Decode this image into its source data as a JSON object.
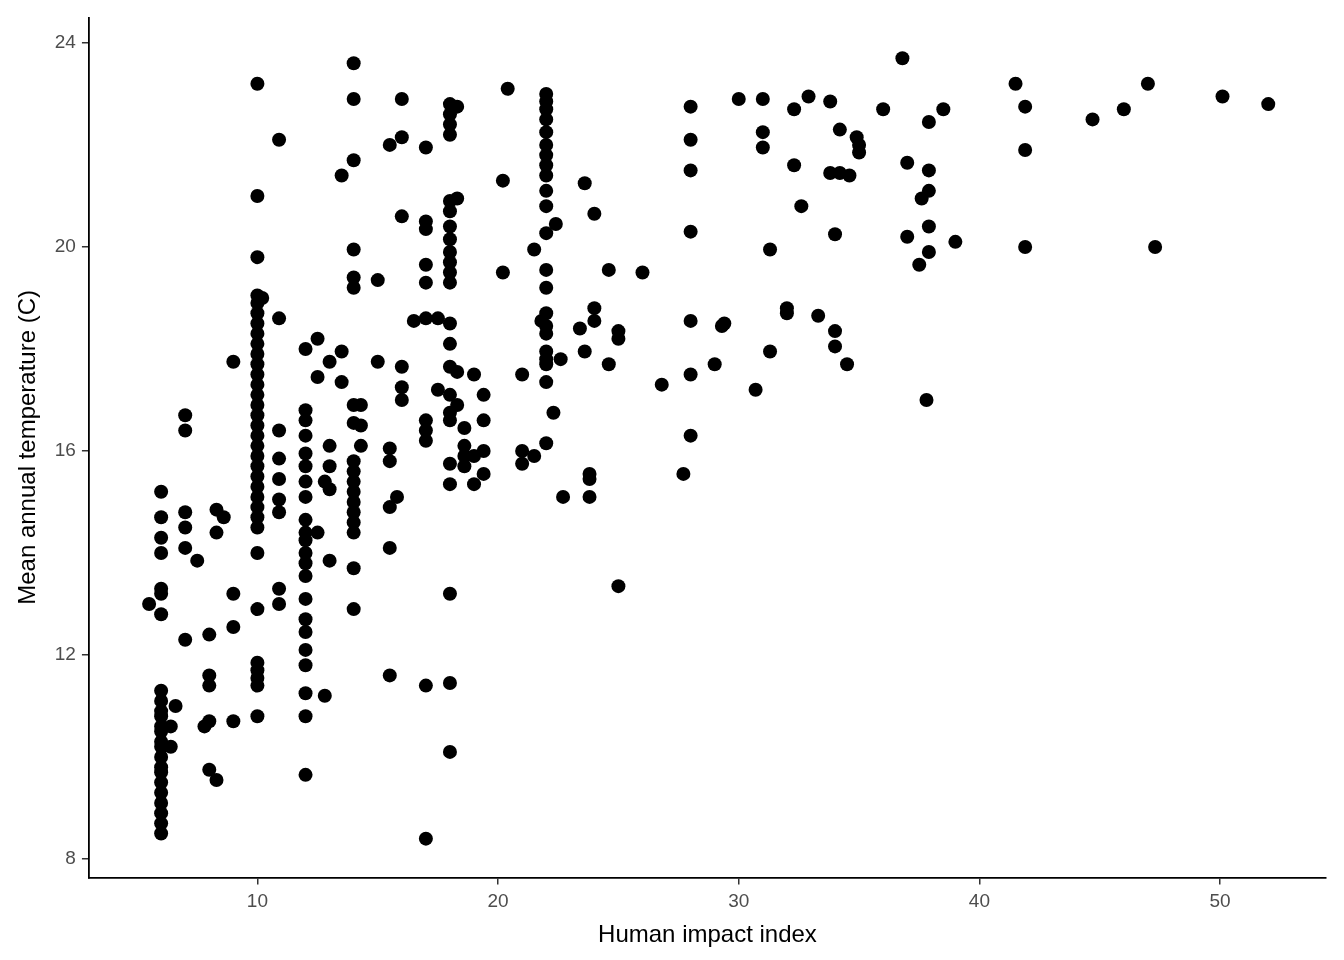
{
  "chart_data": {
    "type": "scatter",
    "xlabel": "Human impact index",
    "ylabel": "Mean annual temperature (C)",
    "xlim": [
      3,
      54.4
    ],
    "ylim": [
      7.64,
      24.5
    ],
    "xticks": [
      10,
      20,
      30,
      40,
      50
    ],
    "yticks": [
      8,
      12,
      16,
      20,
      24
    ],
    "grid": false,
    "legend": false,
    "marker": "circle",
    "series": [
      {
        "color": "#000000",
        "x": [
          5.5,
          6,
          6,
          6,
          6,
          6,
          6,
          6,
          6,
          6,
          6,
          6,
          6,
          6,
          6,
          6,
          6,
          6,
          6,
          6,
          6,
          6,
          6,
          6,
          6,
          6.4,
          6.4,
          6.6,
          7,
          7,
          7,
          7,
          7,
          7,
          7.5,
          7.8,
          8,
          8,
          8,
          8,
          8,
          8.3,
          8.3,
          8.3,
          8.6,
          9,
          9,
          9,
          9,
          10,
          10,
          10,
          10,
          10,
          10,
          10,
          10,
          10,
          10,
          10,
          10,
          10,
          10,
          10,
          10,
          10,
          10,
          10,
          10,
          10,
          10,
          10,
          10,
          10,
          10,
          10,
          10,
          10,
          10,
          10,
          10,
          10,
          10,
          10.2,
          10.9,
          10.9,
          10.9,
          10.9,
          10.9,
          10.9,
          10.9,
          10.9,
          10.9,
          12,
          12,
          12,
          12,
          12,
          12,
          12,
          12,
          12,
          12,
          12,
          12,
          12,
          12,
          12,
          12,
          12,
          12,
          12,
          12,
          12,
          12,
          12.5,
          12.5,
          12.5,
          12.8,
          12.8,
          13,
          13,
          13,
          13,
          13,
          13.5,
          13.5,
          13.5,
          14,
          14,
          14,
          14,
          14,
          14,
          14,
          14,
          14,
          14,
          14,
          14,
          14,
          14,
          14,
          14,
          14,
          14,
          14.3,
          14.3,
          14.3,
          15,
          15,
          15.5,
          15.5,
          15.5,
          15.5,
          15.5,
          15.5,
          15.8,
          16,
          16,
          16,
          16,
          16,
          16,
          16.5,
          17,
          17,
          17,
          17,
          17,
          17,
          17,
          17,
          17,
          17,
          17,
          17.5,
          17.5,
          18,
          18,
          18,
          18,
          18,
          18,
          18,
          18,
          18,
          18,
          18,
          18,
          18,
          18,
          18,
          18,
          18,
          18,
          18,
          18,
          18,
          18,
          18,
          18.3,
          18.3,
          18.3,
          18.3,
          18.6,
          18.6,
          18.6,
          18.6,
          19,
          19,
          19,
          19.4,
          19.4,
          19.4,
          19.4,
          20.2,
          20.2,
          20.4,
          21,
          21,
          21,
          21.5,
          21.5,
          21.8,
          22,
          22,
          22,
          22,
          22,
          22,
          22,
          22,
          22,
          22,
          22,
          22,
          22,
          22,
          22,
          22,
          22,
          22,
          22,
          22,
          22,
          22,
          22.3,
          22.4,
          22.6,
          22.7,
          23.4,
          23.6,
          23.6,
          23.8,
          23.8,
          23.8,
          24,
          24,
          24,
          24.6,
          24.6,
          25,
          25,
          25,
          26,
          26.8,
          27.7,
          28,
          28,
          28,
          28,
          28,
          28,
          28,
          29,
          29.3,
          29.4,
          30,
          30.7,
          31,
          31,
          31,
          31.3,
          31.3,
          32,
          32,
          32.3,
          32.3,
          32.6,
          32.9,
          33.3,
          33.8,
          33.8,
          34,
          34,
          34,
          34.2,
          34.2,
          34.5,
          34.6,
          34.9,
          35,
          35,
          36,
          36.8,
          37,
          37,
          37.5,
          37.6,
          37.8,
          37.9,
          37.9,
          37.9,
          37.9,
          37.9,
          38.5,
          39,
          41.5,
          41.9,
          41.9,
          41.9,
          44.7,
          46,
          47,
          47.3,
          50.1,
          52
        ],
        "values": [
          13,
          15.2,
          14.7,
          14.3,
          14,
          13.3,
          13.2,
          12.8,
          11.3,
          11.1,
          10.9,
          10.8,
          10.6,
          10.5,
          10.3,
          10.2,
          10,
          9.8,
          9.7,
          9.5,
          9.3,
          9.1,
          8.9,
          8.7,
          8.5,
          10.6,
          10.2,
          11,
          16.7,
          16.4,
          14.8,
          14.5,
          14.1,
          12.3,
          13.85,
          10.6,
          12.4,
          11.6,
          11.4,
          10.7,
          9.75,
          14.85,
          14.4,
          9.55,
          14.7,
          17.75,
          13.2,
          12.55,
          10.7,
          23.2,
          21,
          19.8,
          19.05,
          18.9,
          18.7,
          18.5,
          18.3,
          18.1,
          17.9,
          17.7,
          17.5,
          17.3,
          17.1,
          16.9,
          16.7,
          16.5,
          16.3,
          16.1,
          15.9,
          15.7,
          15.5,
          15.3,
          15.1,
          14.9,
          14.7,
          14.5,
          14,
          12.9,
          11.85,
          11.7,
          11.55,
          11.4,
          10.8,
          19,
          22.1,
          18.6,
          16.4,
          15.85,
          15.45,
          15.05,
          14.8,
          13.3,
          13,
          18,
          16.8,
          16.6,
          16.3,
          15.95,
          15.7,
          15.4,
          15.1,
          14.65,
          14.4,
          14.25,
          14,
          13.8,
          13.55,
          13.1,
          12.7,
          12.45,
          12.1,
          11.8,
          11.25,
          10.8,
          9.65,
          18.2,
          17.45,
          14.4,
          15.4,
          11.2,
          17.75,
          16.1,
          15.7,
          15.25,
          13.85,
          17.95,
          17.35,
          21.4,
          23.6,
          22.9,
          21.7,
          19.95,
          19.4,
          19.2,
          16.9,
          16.55,
          15.8,
          15.6,
          15.4,
          15.2,
          15,
          14.8,
          14.6,
          14.4,
          13.7,
          12.9,
          16.9,
          16.5,
          16.1,
          19.35,
          17.75,
          22,
          16.05,
          15.8,
          14.9,
          14.1,
          11.6,
          15.1,
          22.9,
          22.15,
          20.6,
          17.65,
          17.25,
          17,
          18.55,
          21.95,
          20.5,
          20.35,
          19.65,
          19.3,
          18.6,
          16.6,
          16.4,
          16.2,
          11.4,
          8.4,
          18.6,
          17.2,
          22.8,
          22.6,
          22.4,
          22.2,
          20.9,
          20.7,
          20.4,
          20.15,
          19.9,
          19.7,
          19.5,
          19.3,
          18.5,
          18.1,
          17.65,
          17.1,
          16.75,
          16.6,
          15.75,
          15.35,
          13.2,
          11.45,
          10.1,
          22.75,
          20.95,
          17.55,
          16.9,
          16.45,
          16.1,
          15.9,
          15.7,
          17.5,
          15.9,
          15.35,
          17.1,
          16.6,
          16,
          15.55,
          21.3,
          19.5,
          23.1,
          17.5,
          16,
          15.75,
          19.95,
          15.9,
          18.55,
          23,
          22.85,
          22.7,
          22.5,
          22.25,
          22,
          21.8,
          21.6,
          21.4,
          21.1,
          20.8,
          20.27,
          19.55,
          19.2,
          18.7,
          18.45,
          18.3,
          17.95,
          17.8,
          17.7,
          17.35,
          16.15,
          16.75,
          20.45,
          17.8,
          15.1,
          18.4,
          21.25,
          17.95,
          15.55,
          15.45,
          15.1,
          20.65,
          18.8,
          18.55,
          19.55,
          17.7,
          18.35,
          18.2,
          13.35,
          19.5,
          17.3,
          15.55,
          22.75,
          22.1,
          21.5,
          20.3,
          18.55,
          17.5,
          16.3,
          17.7,
          18.45,
          18.5,
          22.9,
          17.2,
          22.9,
          22.25,
          21.95,
          17.95,
          19.95,
          18.8,
          18.7,
          22.7,
          21.6,
          20.8,
          22.95,
          18.65,
          22.85,
          21.45,
          20.25,
          18.35,
          18.05,
          22.3,
          21.45,
          17.7,
          21.4,
          22.15,
          22,
          21.85,
          22.7,
          23.7,
          21.65,
          20.2,
          19.65,
          20.95,
          17,
          22.45,
          21.5,
          21.1,
          20.4,
          19.9,
          22.7,
          20.1,
          23.2,
          22.75,
          21.9,
          20,
          22.5,
          22.7,
          23.2,
          20,
          22.95,
          22.8
        ]
      }
    ]
  }
}
